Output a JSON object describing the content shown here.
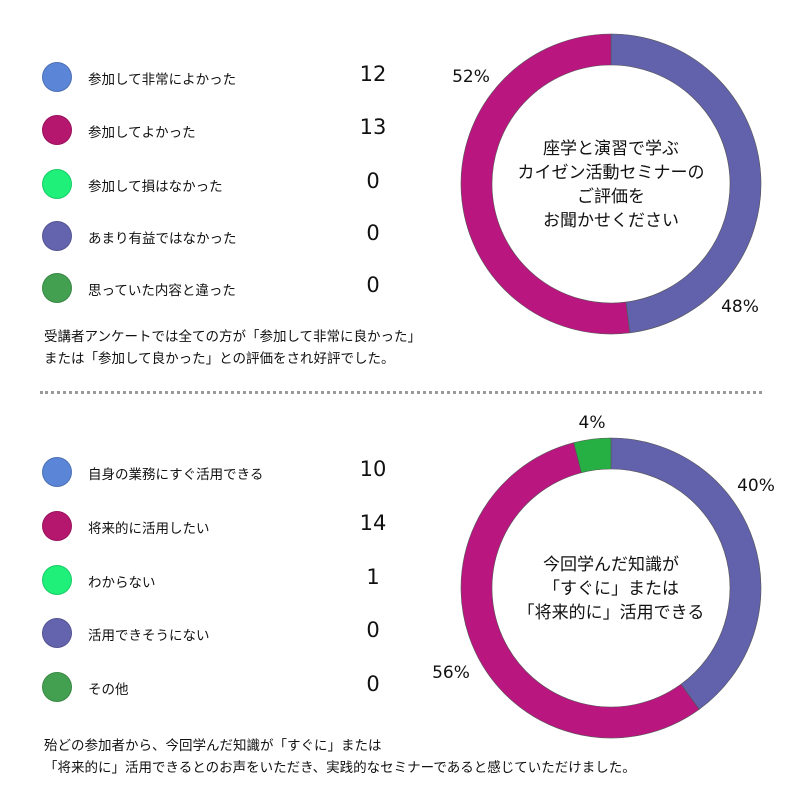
{
  "colors": {
    "blue_light": "#5B85D6",
    "magenta": "#B5176F",
    "green_bright": "#1EF07A",
    "purple": "#6464AE",
    "green_dark": "#44A051",
    "donut_purple": "#6161AC",
    "donut_magenta": "#BA1680",
    "donut_green": "#26B044"
  },
  "section1": {
    "legend": [
      {
        "label": "参加して非常によかった",
        "count": "12",
        "color": "#5B85D6"
      },
      {
        "label": "参加してよかった",
        "count": "13",
        "color": "#B5176F"
      },
      {
        "label": "参加して損はなかった",
        "count": "0",
        "color": "#1EF07A"
      },
      {
        "label": "あまり有益ではなかった",
        "count": "0",
        "color": "#6464AE"
      },
      {
        "label": "思っていた内容と違った",
        "count": "0",
        "color": "#44A051"
      }
    ],
    "note_lines": [
      "受講者アンケートでは全ての方が「参加して非常に良かった」",
      "または「参加して良かった」との評価をされ好評でした。"
    ],
    "donut_center_lines": [
      "座学と演習で学ぶ",
      "カイゼン活動セミナーの",
      "ご評価を",
      "お聞かせください"
    ]
  },
  "section2": {
    "legend": [
      {
        "label": "自身の業務にすぐ活用できる",
        "count": "10",
        "color": "#5B85D6"
      },
      {
        "label": "将来的に活用したい",
        "count": "14",
        "color": "#B5176F"
      },
      {
        "label": "わからない",
        "count": "1",
        "color": "#1EF07A"
      },
      {
        "label": "活用できそうにない",
        "count": "0",
        "color": "#6464AE"
      },
      {
        "label": "その他",
        "count": "0",
        "color": "#44A051"
      }
    ],
    "note_lines": [
      "殆どの参加者から、今回学んだ知識が「すぐに」または",
      "「将来的に」活用できるとのお声をいただき、実践的なセミナーであると感じていただけました。"
    ],
    "donut_center_lines": [
      "今回学んだ知識が",
      "「すぐに」または",
      "「将来的に」活用できる"
    ]
  },
  "chart_data": [
    {
      "type": "pie",
      "style": "donut",
      "slices": [
        {
          "label": "48%",
          "value": 48,
          "color": "#6161AC"
        },
        {
          "label": "52%",
          "value": 52,
          "color": "#BA1680"
        }
      ]
    },
    {
      "type": "pie",
      "style": "donut",
      "slices": [
        {
          "label": "40%",
          "value": 40,
          "color": "#6161AC"
        },
        {
          "label": "56%",
          "value": 56,
          "color": "#BA1680"
        },
        {
          "label": "4%",
          "value": 4,
          "color": "#26B044"
        }
      ]
    }
  ]
}
